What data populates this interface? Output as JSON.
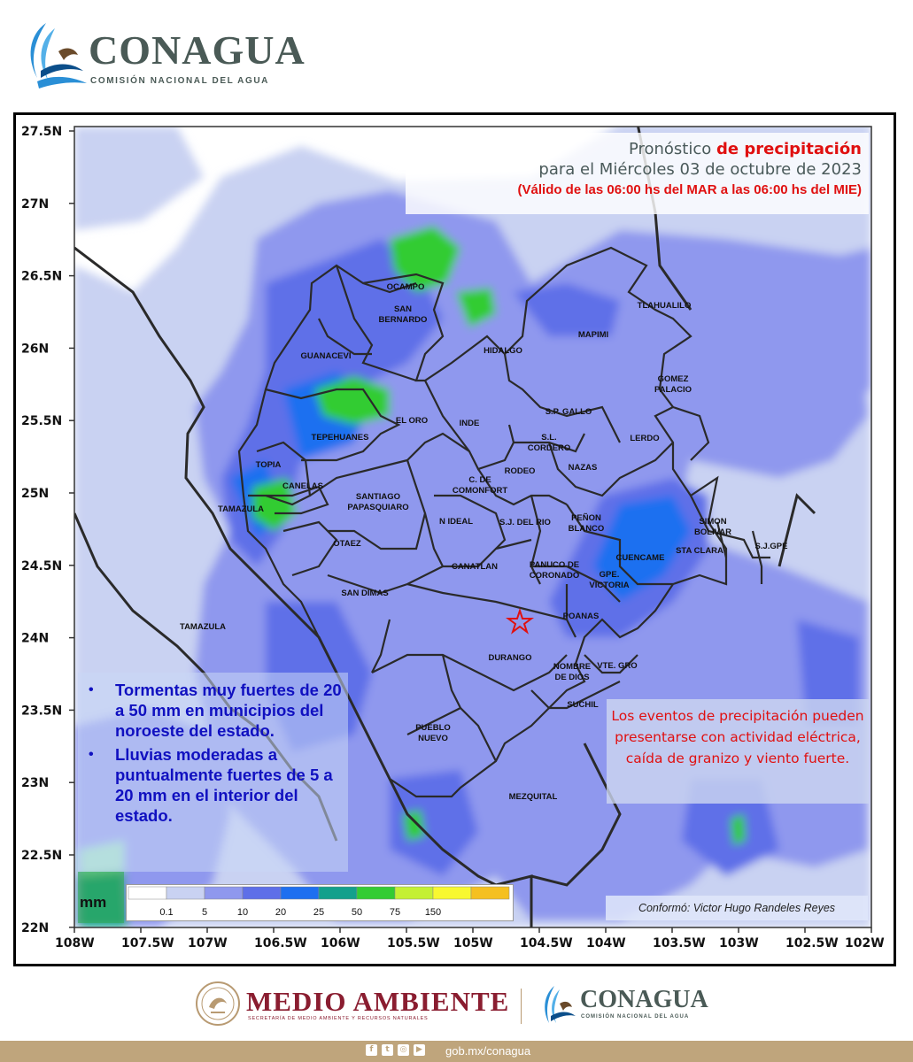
{
  "header": {
    "brand": "CONAGUA",
    "subtitle": "COMISIÓN NACIONAL DEL AGUA"
  },
  "map": {
    "title_prefix": "Pronóstico ",
    "title_highlight": "de precipitación",
    "date_line": "para el Miércoles 03 de octubre de 2023",
    "validity": "(Válido de las 06:00 hs del MAR a las 06:00 hs del MIE)",
    "lat_labels": [
      "27.5N",
      "27N",
      "26.5N",
      "26N",
      "25.5N",
      "25N",
      "24.5N",
      "24N",
      "23.5N",
      "23N",
      "22.5N",
      "22N"
    ],
    "lon_labels": [
      "108W",
      "107.5W",
      "107W",
      "106.5W",
      "106W",
      "105.5W",
      "105W",
      "104.5W",
      "104W",
      "103.5W",
      "103W",
      "102.5W",
      "102W"
    ],
    "municipalities": [
      {
        "name": "OCAMPO",
        "lines": [
          "OCAMPO"
        ]
      },
      {
        "name": "SAN BERNARDO",
        "lines": [
          "SAN",
          "BERNARDO"
        ]
      },
      {
        "name": "TLAHUALILO",
        "lines": [
          "TLAHUALILO"
        ]
      },
      {
        "name": "MAPIMI",
        "lines": [
          "MAPIMI"
        ]
      },
      {
        "name": "HIDALGO",
        "lines": [
          "HIDALGO"
        ]
      },
      {
        "name": "GUANACEVI",
        "lines": [
          "GUANACEVI"
        ]
      },
      {
        "name": "GOMEZ PALACIO",
        "lines": [
          "GOMEZ",
          "PALACIO"
        ]
      },
      {
        "name": "EL ORO",
        "lines": [
          "EL ORO"
        ]
      },
      {
        "name": "INDE",
        "lines": [
          "INDE"
        ]
      },
      {
        "name": "S.P. GALLO",
        "lines": [
          "S.P. GALLO"
        ]
      },
      {
        "name": "TEPEHUANES",
        "lines": [
          "TEPEHUANES"
        ]
      },
      {
        "name": "S.L. CORDERO",
        "lines": [
          "S.L.",
          "CORDERO"
        ]
      },
      {
        "name": "LERDO",
        "lines": [
          "LERDO"
        ]
      },
      {
        "name": "RODEO",
        "lines": [
          "RODEO"
        ]
      },
      {
        "name": "NAZAS",
        "lines": [
          "NAZAS"
        ]
      },
      {
        "name": "TOPIA",
        "lines": [
          "TOPIA"
        ]
      },
      {
        "name": "C. DE COMONFORT",
        "lines": [
          "C. DE",
          "COMONFORT"
        ]
      },
      {
        "name": "CANELAS",
        "lines": [
          "CANELAS"
        ]
      },
      {
        "name": "SANTIAGO PAPASQUIARO",
        "lines": [
          "SANTIAGO",
          "PAPASQUIARO"
        ]
      },
      {
        "name": "TAMAZULA",
        "lines": [
          "TAMAZULA"
        ]
      },
      {
        "name": "N IDEAL",
        "lines": [
          "N IDEAL"
        ]
      },
      {
        "name": "S.J. DEL RIO",
        "lines": [
          "S.J. DEL RIO"
        ]
      },
      {
        "name": "PEÑON BLANCO",
        "lines": [
          "PEÑON",
          "BLANCO"
        ]
      },
      {
        "name": "SIMON BOLIVAR",
        "lines": [
          "SIMON",
          "BOLIVAR"
        ]
      },
      {
        "name": "S.J.GPE",
        "lines": [
          "S.J.GPE"
        ]
      },
      {
        "name": "OTAEZ",
        "lines": [
          "OTAEZ"
        ]
      },
      {
        "name": "STA CLARA",
        "lines": [
          "STA CLARA"
        ]
      },
      {
        "name": "CUENCAME",
        "lines": [
          "CUENCAME"
        ]
      },
      {
        "name": "CANATLAN",
        "lines": [
          "CANATLAN"
        ]
      },
      {
        "name": "PANUCO DE CORONADO",
        "lines": [
          "PANUCO DE",
          "CORONADO"
        ]
      },
      {
        "name": "GPE. VICTORIA",
        "lines": [
          "GPE.",
          "VICTORIA"
        ]
      },
      {
        "name": "SAN DIMAS",
        "lines": [
          "SAN DIMAS"
        ]
      },
      {
        "name": "POANAS",
        "lines": [
          "POANAS"
        ]
      },
      {
        "name": "TAMAZULA (Sinaloa)",
        "lines": [
          "TAMAZULA"
        ]
      },
      {
        "name": "DURANGO",
        "lines": [
          "DURANGO"
        ]
      },
      {
        "name": "NOMBRE DE DIOS",
        "lines": [
          "NOMBRE",
          "DE DIOS"
        ]
      },
      {
        "name": "VTE. GRO",
        "lines": [
          "VTE. GRO"
        ]
      },
      {
        "name": "SUCHIL",
        "lines": [
          "SUCHIL"
        ]
      },
      {
        "name": "PUEBLO NUEVO",
        "lines": [
          "PUEBLO",
          "NUEVO"
        ]
      },
      {
        "name": "MEZQUITAL",
        "lines": [
          "MEZQUITAL"
        ]
      }
    ],
    "legend": {
      "unit": "mm",
      "bins": [
        {
          "label": "0.1",
          "color": "#ffffff"
        },
        {
          "label": "5",
          "color": "#c9d2f2"
        },
        {
          "label": "10",
          "color": "#8f98ee"
        },
        {
          "label": "20",
          "color": "#5e6fe8"
        },
        {
          "label": "25",
          "color": "#1e6ff0"
        },
        {
          "label": "50",
          "color": "#13a08c"
        },
        {
          "label": "75",
          "color": "#33cc33"
        },
        {
          "label": "150",
          "color": "#c4f033"
        },
        {
          "label": "",
          "color": "#f8f830"
        },
        {
          "label": "",
          "color": "#f5c020"
        }
      ]
    }
  },
  "notes": [
    "Tormentas muy fuertes de 20 a 50 mm en municipios del noroeste del estado.",
    "Lluvias moderadas a puntualmente fuertes de 5 a 20 mm en el interior del estado."
  ],
  "warning": "Los eventos de precipitación pueden presentarse con actividad eléctrica, caída de granizo y viento fuerte.",
  "credit": "Conformó:  Victor Hugo Randeles Reyes",
  "footer": {
    "ministry": "MEDIO AMBIENTE",
    "ministry_sub": "SECRETARÍA DE MEDIO AMBIENTE Y RECURSOS NATURALES",
    "brand": "CONAGUA",
    "brand_sub": "COMISIÓN NACIONAL DEL AGUA",
    "web": "gob.mx/conagua",
    "social_icons": [
      "facebook-icon",
      "twitter-icon",
      "instagram-icon",
      "youtube-icon"
    ]
  }
}
